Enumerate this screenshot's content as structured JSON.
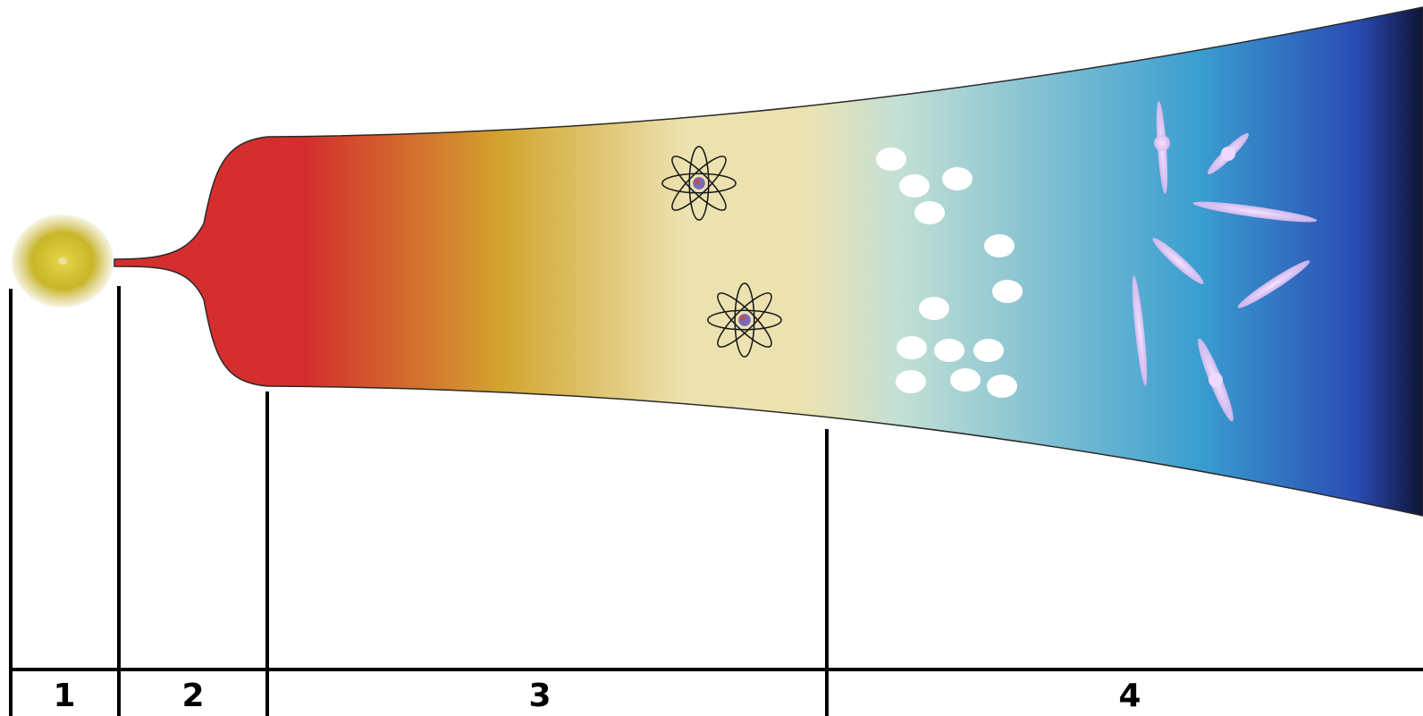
{
  "phases": [
    {
      "label": "1"
    },
    {
      "label": "2"
    },
    {
      "label": "3"
    },
    {
      "label": "4"
    }
  ],
  "colors": {
    "singularity": "#c8b528",
    "inflation": "#d42e2e",
    "hot": "#d2a42e",
    "cooling": "#ece2b0",
    "cool": "#c4e0d4",
    "cold": "#3a9ed0",
    "deep": "#2a4cb4",
    "edge": "#0e1436",
    "particles": "#ffffff",
    "galaxies": "#dcbaf0",
    "lines": "#000000"
  },
  "icons": {
    "atoms": [
      "atom-icon",
      "atom-icon"
    ],
    "nuclei_count": 12,
    "galaxy_count": 8
  }
}
